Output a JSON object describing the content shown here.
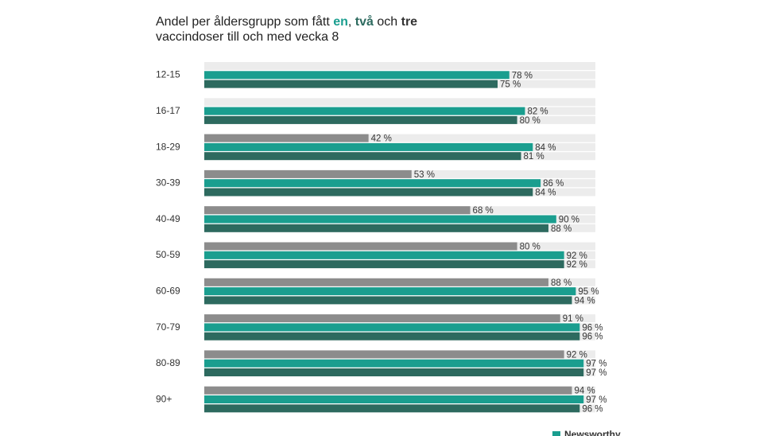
{
  "chart_data": {
    "type": "bar",
    "orientation": "horizontal",
    "subtitle_parts": [
      "Andel per åldersgrupp som fått ",
      ", ",
      " och ",
      " vaccindoser till och med vecka 8"
    ],
    "categories": [
      "12-15",
      "16-17",
      "18-29",
      "30-39",
      "40-49",
      "50-59",
      "60-69",
      "70-79",
      "80-89",
      "90+"
    ],
    "xlim": [
      0,
      100
    ],
    "series": [
      {
        "name": "en",
        "color": "#1a9e8f",
        "values": [
          78,
          82,
          84,
          86,
          90,
          92,
          95,
          96,
          97,
          97
        ],
        "value_labels": [
          "78 %",
          "82 %",
          "84 %",
          "86 %",
          "90 %",
          "92 %",
          "95 %",
          "96 %",
          "97 %",
          "97 %"
        ]
      },
      {
        "name": "två",
        "color": "#2d6a5f",
        "values": [
          75,
          80,
          81,
          84,
          88,
          92,
          94,
          96,
          97,
          96
        ],
        "value_labels": [
          "75 %",
          "80 %",
          "81 %",
          "84 %",
          "88 %",
          "92 %",
          "94 %",
          "96 %",
          "97 %",
          "96 %"
        ]
      },
      {
        "name": "tre",
        "color": "#8c8c8c",
        "values": [
          null,
          null,
          42,
          53,
          68,
          80,
          88,
          91,
          92,
          94
        ],
        "value_labels": [
          null,
          null,
          "42 %",
          "53 %",
          "68 %",
          "80 %",
          "88 %",
          "91 %",
          "92 %",
          "94 %"
        ]
      }
    ],
    "brand": "Newsworthy"
  }
}
